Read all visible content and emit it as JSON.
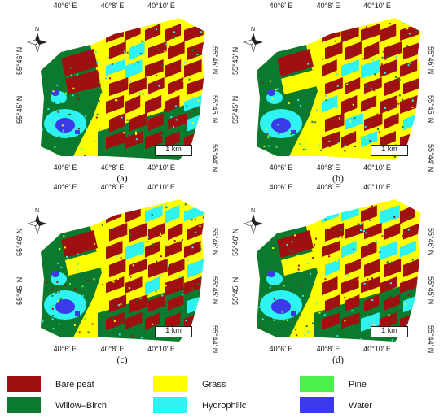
{
  "panels": [
    {
      "caption": "(a)",
      "top_ticks": [
        "40°6′ E",
        "40°8′ E",
        "40°10′ E"
      ],
      "bottom_ticks": [
        "40°6′ E",
        "40°8′ E",
        "40°10′ E"
      ],
      "left_ticks": [
        "55°46′ N",
        "55°45′ N"
      ],
      "right_ticks": [
        "55°46′ N",
        "55°45′ N",
        "55°44′ N"
      ],
      "scale_label": "1 km",
      "north_label": "N"
    },
    {
      "caption": "(b)",
      "top_ticks": [
        "40°6′ E",
        "40°8′ E",
        "40°10′ E"
      ],
      "bottom_ticks": [
        "40°6′ E",
        "40°8′ E",
        "40°10′ E"
      ],
      "left_ticks": [
        "55°46′ N",
        "55°45′ N"
      ],
      "right_ticks": [
        "55°46′ N",
        "55°45′ N",
        "55°44′ N"
      ],
      "scale_label": "1 km",
      "north_label": "N"
    },
    {
      "caption": "(c)",
      "top_ticks": [
        "40°6′ E",
        "40°8′ E",
        "40°10′ E"
      ],
      "bottom_ticks": [
        "40°6′ E",
        "40°8′ E",
        "40°10′ E"
      ],
      "left_ticks": [
        "55°46′ N",
        "55°45′ N"
      ],
      "right_ticks": [
        "55°46′ N",
        "55°45′ N",
        "55°44′ N"
      ],
      "scale_label": "1 km",
      "north_label": "N"
    },
    {
      "caption": "(d)",
      "top_ticks": [
        "40°6′ E",
        "40°8′ E",
        "40°10′ E"
      ],
      "bottom_ticks": [
        "40°6′ E",
        "40°8′ E",
        "40°10′ E"
      ],
      "left_ticks": [
        "55°46′ N",
        "55°45′ N"
      ],
      "right_ticks": [
        "55°46′ N",
        "55°45′ N",
        "55°44′ N"
      ],
      "scale_label": "1 km",
      "north_label": "N"
    }
  ],
  "legend": [
    {
      "label": "Bare peat",
      "color": "#a01010"
    },
    {
      "label": "Grass",
      "color": "#ffff00"
    },
    {
      "label": "Pine",
      "color": "#4cf04c"
    },
    {
      "label": "Willow–Birch",
      "color": "#0b7a2e"
    },
    {
      "label": "Hydrophilic",
      "color": "#2ff2f2"
    },
    {
      "label": "Water",
      "color": "#3a3ae8"
    }
  ]
}
